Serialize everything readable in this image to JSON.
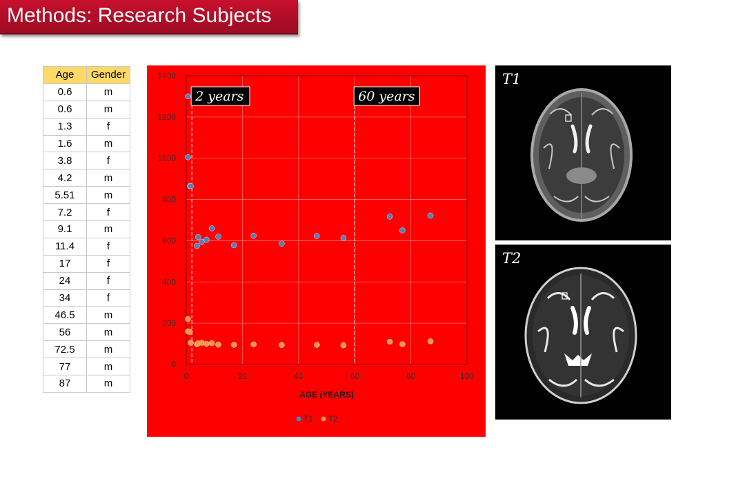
{
  "slide": {
    "title": "Methods: Research Subjects"
  },
  "table": {
    "headers": [
      "Age",
      "Gender"
    ],
    "rows": [
      [
        "0.6",
        "m"
      ],
      [
        "0.6",
        "m"
      ],
      [
        "1.3",
        "f"
      ],
      [
        "1.6",
        "m"
      ],
      [
        "3.8",
        "f"
      ],
      [
        "4.2",
        "m"
      ],
      [
        "5.51",
        "m"
      ],
      [
        "7.2",
        "f"
      ],
      [
        "9.1",
        "m"
      ],
      [
        "11.4",
        "f"
      ],
      [
        "17",
        "f"
      ],
      [
        "24",
        "f"
      ],
      [
        "34",
        "f"
      ],
      [
        "46.5",
        "m"
      ],
      [
        "56",
        "m"
      ],
      [
        "72.5",
        "m"
      ],
      [
        "77",
        "m"
      ],
      [
        "87",
        "m"
      ]
    ]
  },
  "chart_data": {
    "type": "scatter",
    "title": "",
    "xlabel": "AGE (YEARS)",
    "ylabel": "",
    "xlim": [
      0,
      100
    ],
    "ylim": [
      0,
      1400
    ],
    "xticks": [
      0,
      20,
      40,
      60,
      80,
      100
    ],
    "yticks": [
      0,
      200,
      400,
      600,
      800,
      1000,
      1200,
      1400
    ],
    "grid": true,
    "legend_position": "bottom",
    "background_color": "#ff0000",
    "series": [
      {
        "name": "T1",
        "color": "#4f81bd",
        "x": [
          0.6,
          0.6,
          1.3,
          1.6,
          3.8,
          4.2,
          5.51,
          7.2,
          9.1,
          11.4,
          17,
          24,
          34,
          46.5,
          56,
          72.5,
          77,
          87
        ],
        "y": [
          1300,
          1005,
          865,
          865,
          575,
          618,
          595,
          605,
          660,
          620,
          578,
          624,
          586,
          623,
          613,
          717,
          650,
          722
        ]
      },
      {
        "name": "T2",
        "color": "#f79646",
        "x": [
          0.6,
          0.6,
          1.3,
          1.6,
          3.8,
          4.2,
          5.51,
          7.2,
          9.1,
          11.4,
          17,
          24,
          34,
          46.5,
          56,
          72.5,
          77,
          87
        ],
        "y": [
          220,
          160,
          158,
          105,
          98,
          102,
          105,
          100,
          103,
          96,
          95,
          97,
          94,
          95,
          93,
          110,
          98,
          112
        ]
      }
    ],
    "annotations": [
      {
        "x": 2,
        "text": "2 years"
      },
      {
        "x": 60,
        "text": "60 years"
      }
    ]
  },
  "images": [
    {
      "label": "T1",
      "description": "axial brain MRI slice, T1-weighted"
    },
    {
      "label": "T2",
      "description": "axial brain MRI slice, T2-weighted"
    }
  ]
}
